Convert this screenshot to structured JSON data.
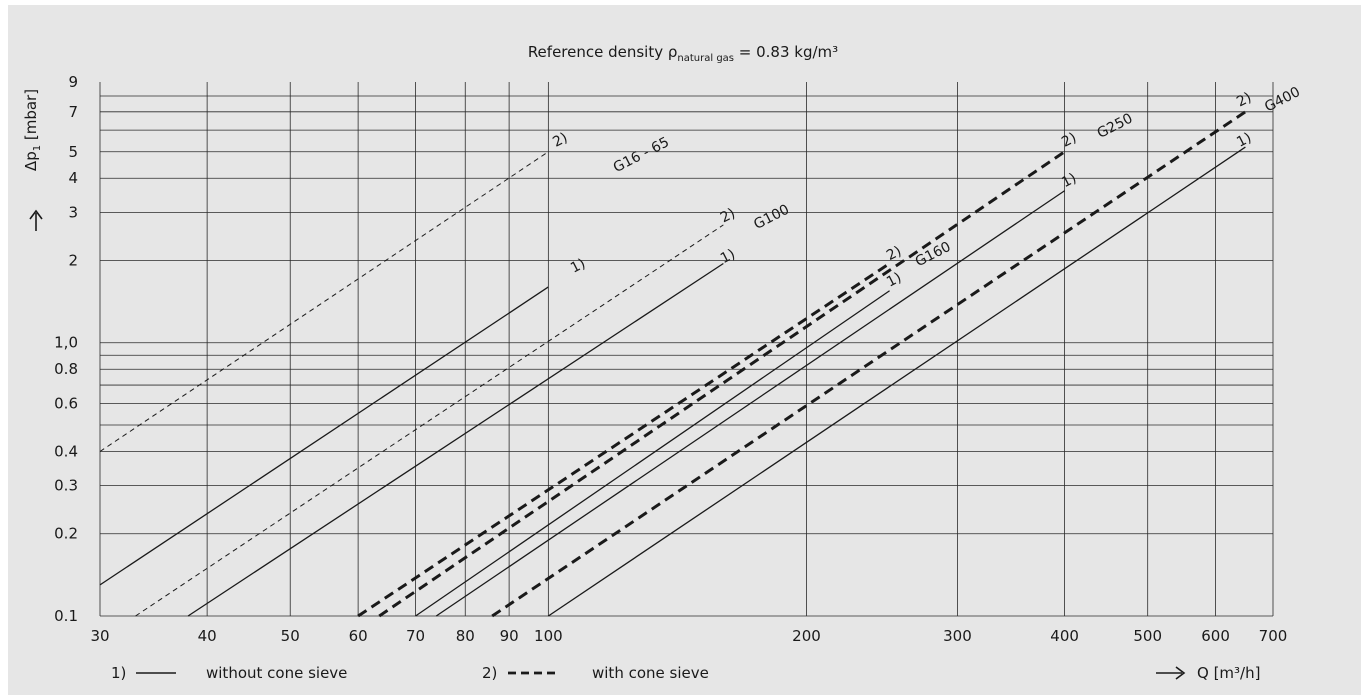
{
  "chart_data": {
    "type": "line",
    "title": "Reference density ρnatural gas = 0.83 kg/m³",
    "title_parts": {
      "lead": "Reference density ρ",
      "subscript": "natural gas",
      "tail": " = 0.83 kg/m³"
    },
    "xlabel": "Q [m³/h]",
    "ylabel_parts": {
      "lead": "Δp",
      "subscript": "1",
      "tail": " [mbar]"
    },
    "x_scale": "log",
    "y_scale": "log",
    "xlim": [
      30,
      700
    ],
    "ylim": [
      0.1,
      9
    ],
    "grid": true,
    "x_ticks": [
      30,
      40,
      50,
      60,
      70,
      80,
      90,
      100,
      200,
      300,
      400,
      500,
      600,
      700
    ],
    "x_tick_labels": [
      "30",
      "40",
      "50",
      "60",
      "70",
      "80",
      "90",
      "100",
      "200",
      "300",
      "400",
      "500",
      "600",
      "700"
    ],
    "y_ticks": [
      0.1,
      0.2,
      0.3,
      0.4,
      0.6,
      0.8,
      1.0,
      2,
      3,
      4,
      5,
      7,
      9
    ],
    "y_tick_labels": [
      "0.1",
      "0.2",
      "0.3",
      "0.4",
      "0.6",
      "0.8",
      "1,0",
      "2",
      "3",
      "4",
      "5",
      "7",
      "9"
    ],
    "y_gridlines": [
      0.1,
      0.2,
      0.3,
      0.4,
      0.5,
      0.6,
      0.7,
      0.8,
      0.9,
      1.0,
      2,
      3,
      4,
      5,
      6,
      7,
      8
    ],
    "x_gridlines": [
      30,
      40,
      50,
      60,
      70,
      80,
      90,
      100,
      200,
      300,
      400,
      500,
      600,
      700
    ],
    "legend": [
      {
        "marker": "1)",
        "style": "solid",
        "label": "without cone sieve"
      },
      {
        "marker": "2)",
        "style": "dashed",
        "label": "with cone sieve"
      }
    ],
    "series": [
      {
        "group": "G16 - 65",
        "marker": "2)",
        "style": "dashed-thin",
        "points": [
          [
            30,
            0.4
          ],
          [
            100,
            5.0
          ]
        ]
      },
      {
        "group": "G16 - 65",
        "marker": "1)",
        "style": "solid",
        "points": [
          [
            30,
            0.13
          ],
          [
            100,
            1.6
          ]
        ]
      },
      {
        "group": "G100",
        "marker": "2)",
        "style": "dashed-thin",
        "points": [
          [
            33,
            0.1
          ],
          [
            160,
            2.7
          ]
        ]
      },
      {
        "group": "G100",
        "marker": "1)",
        "style": "solid",
        "points": [
          [
            38,
            0.1
          ],
          [
            160,
            1.95
          ]
        ]
      },
      {
        "group": "G160",
        "marker": "2)",
        "style": "dashed-bold",
        "points": [
          [
            60,
            0.1
          ],
          [
            250,
            1.95
          ]
        ]
      },
      {
        "group": "G160",
        "marker": "1)",
        "style": "solid",
        "points": [
          [
            70,
            0.1
          ],
          [
            250,
            1.55
          ]
        ]
      },
      {
        "group": "G250",
        "marker": "2)",
        "style": "dashed-bold",
        "points": [
          [
            63.5,
            0.1
          ],
          [
            400,
            5.0
          ]
        ]
      },
      {
        "group": "G250",
        "marker": "1)",
        "style": "solid",
        "points": [
          [
            74,
            0.1
          ],
          [
            400,
            3.6
          ]
        ]
      },
      {
        "group": "G400",
        "marker": "2)",
        "style": "dashed-bold",
        "points": [
          [
            86,
            0.1
          ],
          [
            650,
            7.0
          ]
        ]
      },
      {
        "group": "G400",
        "marker": "1)",
        "style": "solid",
        "points": [
          [
            100,
            0.1
          ],
          [
            650,
            5.2
          ]
        ]
      }
    ],
    "annotations": [
      {
        "text": "2)",
        "x": 102,
        "y": 5.2
      },
      {
        "text": "1)",
        "x": 107,
        "y": 1.8
      },
      {
        "text": "G16 - 65",
        "x": 120,
        "y": 4.2
      },
      {
        "text": "2)",
        "x": 160,
        "y": 2.75
      },
      {
        "text": "1)",
        "x": 160,
        "y": 1.95
      },
      {
        "text": "G100",
        "x": 175,
        "y": 2.6
      },
      {
        "text": "2)",
        "x": 250,
        "y": 2.0
      },
      {
        "text": "1)",
        "x": 250,
        "y": 1.6
      },
      {
        "text": "G160",
        "x": 270,
        "y": 1.9
      },
      {
        "text": "2)",
        "x": 400,
        "y": 5.2
      },
      {
        "text": "1)",
        "x": 400,
        "y": 3.7
      },
      {
        "text": "G250",
        "x": 440,
        "y": 5.6
      },
      {
        "text": "2)",
        "x": 640,
        "y": 7.3
      },
      {
        "text": "1)",
        "x": 640,
        "y": 5.2
      },
      {
        "text": "G400",
        "x": 690,
        "y": 7.0
      }
    ]
  }
}
